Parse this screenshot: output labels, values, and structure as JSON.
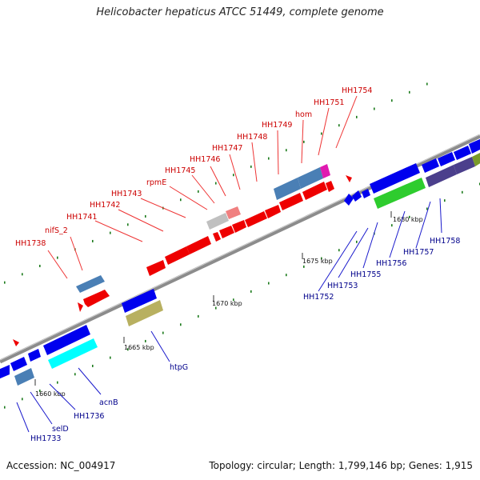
{
  "title": "Helicobacter hepaticus ATCC 51449, complete genome",
  "footer": {
    "accession": "Accession: NC_004917",
    "summary": "Topology: circular; Length: 1,799,146 bp; Genes: 1,915"
  },
  "colors": {
    "backbone": "#8c8c8c",
    "forward_gene": "#ff0000",
    "reverse_gene": "#0000ee",
    "label_top": "#cc0000",
    "label_bottom": "#00008b",
    "tick": "#2a7a2a"
  },
  "scale_labels": [
    "1660 kbp",
    "1665 kbp",
    "1670 kbp",
    "1675 kbp",
    "1680 kbp"
  ],
  "top_labels": [
    "HH1738",
    "nifS_2",
    "HH1741",
    "HH1742",
    "HH1743",
    "rpmE",
    "HH1745",
    "HH1746",
    "HH1747",
    "HH1748",
    "HH1749",
    "hom",
    "HH1751",
    "HH1754"
  ],
  "bottom_labels": [
    "HH1733",
    "selD",
    "HH1736",
    "acnB",
    "htpG",
    "HH1752",
    "HH1753",
    "HH1755",
    "HH1756",
    "HH1757",
    "HH1758"
  ]
}
